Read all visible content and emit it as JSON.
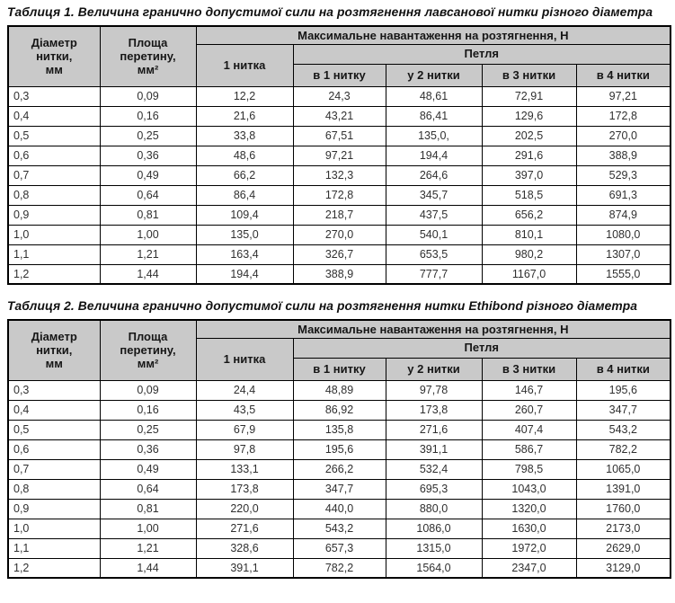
{
  "colors": {
    "header_bg": "#c9c9c9",
    "border": "#000000",
    "page_bg": "#ffffff",
    "text": "#1f1f1f"
  },
  "tables": [
    {
      "title": "Таблиця 1. Величина гранично допустимої сили на розтягнення лавсанової нитки різного діаметра",
      "header": {
        "col_diameter": "Діаметр\nнитки,\nмм",
        "col_area": "Площа\nперетину,\nмм²",
        "col_max_load": "Максимальне навантаження на розтягнення, Н",
        "col_one_thread": "1 нитка",
        "col_loop": "Петля",
        "loop_cols": [
          "в 1 нитку",
          "у 2 нитки",
          "в 3 нитки",
          "в 4 нитки"
        ]
      },
      "rows": [
        [
          "0,3",
          "0,09",
          "12,2",
          "24,3",
          "48,61",
          "72,91",
          "97,21"
        ],
        [
          "0,4",
          "0,16",
          "21,6",
          "43,21",
          "86,41",
          "129,6",
          "172,8"
        ],
        [
          "0,5",
          "0,25",
          "33,8",
          "67,51",
          "135,0,",
          "202,5",
          "270,0"
        ],
        [
          "0,6",
          "0,36",
          "48,6",
          "97,21",
          "194,4",
          "291,6",
          "388,9"
        ],
        [
          "0,7",
          "0,49",
          "66,2",
          "132,3",
          "264,6",
          "397,0",
          "529,3"
        ],
        [
          "0,8",
          "0,64",
          "86,4",
          "172,8",
          "345,7",
          "518,5",
          "691,3"
        ],
        [
          "0,9",
          "0,81",
          "109,4",
          "218,7",
          "437,5",
          "656,2",
          "874,9"
        ],
        [
          "1,0",
          "1,00",
          "135,0",
          "270,0",
          "540,1",
          "810,1",
          "1080,0"
        ],
        [
          "1,1",
          "1,21",
          "163,4",
          "326,7",
          "653,5",
          "980,2",
          "1307,0"
        ],
        [
          "1,2",
          "1,44",
          "194,4",
          "388,9",
          "777,7",
          "1167,0",
          "1555,0"
        ]
      ]
    },
    {
      "title": "Таблиця 2. Величина гранично допустимої сили на розтягнення нитки Ethibond різного діаметра",
      "header": {
        "col_diameter": "Діаметр\nнитки,\nмм",
        "col_area": "Площа\nперетину,\nмм²",
        "col_max_load": "Максимальне навантаження на розтягнення, Н",
        "col_one_thread": "1 нитка",
        "col_loop": "Петля",
        "loop_cols": [
          "в 1 нитку",
          "у 2 нитки",
          "в 3 нитки",
          "в 4 нитки"
        ]
      },
      "rows": [
        [
          "0,3",
          "0,09",
          "24,4",
          "48,89",
          "97,78",
          "146,7",
          "195,6"
        ],
        [
          "0,4",
          "0,16",
          "43,5",
          "86,92",
          "173,8",
          "260,7",
          "347,7"
        ],
        [
          "0,5",
          "0,25",
          "67,9",
          "135,8",
          "271,6",
          "407,4",
          "543,2"
        ],
        [
          "0,6",
          "0,36",
          "97,8",
          "195,6",
          "391,1",
          "586,7",
          "782,2"
        ],
        [
          "0,7",
          "0,49",
          "133,1",
          "266,2",
          "532,4",
          "798,5",
          "1065,0"
        ],
        [
          "0,8",
          "0,64",
          "173,8",
          "347,7",
          "695,3",
          "1043,0",
          "1391,0"
        ],
        [
          "0,9",
          "0,81",
          "220,0",
          "440,0",
          "880,0",
          "1320,0",
          "1760,0"
        ],
        [
          "1,0",
          "1,00",
          "271,6",
          "543,2",
          "1086,0",
          "1630,0",
          "2173,0"
        ],
        [
          "1,1",
          "1,21",
          "328,6",
          "657,3",
          "1315,0",
          "1972,0",
          "2629,0"
        ],
        [
          "1,2",
          "1,44",
          "391,1",
          "782,2",
          "1564,0",
          "2347,0",
          "3129,0"
        ]
      ]
    }
  ]
}
